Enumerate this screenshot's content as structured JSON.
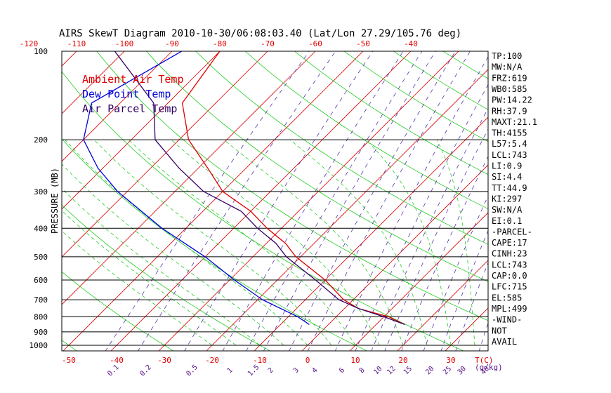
{
  "chart_data": {
    "type": "line",
    "title": "AIRS SkewT Diagram 2010-10-30/06:08:03.40 (Lat/Lon 27.29/105.76 deg)",
    "ylabel": "PRESSURE (MB)",
    "pressure_ticks": [
      "100",
      "200",
      "300",
      "400",
      "500",
      "600",
      "700",
      "800",
      "900",
      "1000"
    ],
    "pressure_levels": [
      100,
      200,
      300,
      400,
      500,
      600,
      700,
      800,
      900,
      1000
    ],
    "top_temp_ticks": [
      "-120",
      "-110",
      "-100",
      "-90",
      "-80",
      "-70",
      "-60",
      "-50",
      "-40"
    ],
    "top_temp_values": [
      -120,
      -110,
      -100,
      -90,
      -80,
      -70,
      -60,
      -50,
      -40
    ],
    "bottom_temp_ticks": [
      "-50",
      "-40",
      "-30",
      "-20",
      "-10",
      "0",
      "10",
      "20",
      "30"
    ],
    "bottom_temp_values": [
      -50,
      -40,
      -30,
      -20,
      -10,
      0,
      10,
      20,
      30
    ],
    "bottom_temp_unit": "T(C)",
    "mixing_ratio_ticks": [
      "0.1",
      "0.2",
      "0.5",
      "1",
      "1.5",
      "2",
      "3",
      "4",
      "6",
      "8",
      "10",
      "12",
      "15",
      "20",
      "25",
      "30",
      "40"
    ],
    "mixing_ratio_unit": "(g/kg)",
    "legend": [
      {
        "label": "Ambient Air Temp",
        "color": "#dd0000"
      },
      {
        "label": "Dew Point Temp",
        "color": "#0000dd"
      },
      {
        "label": "Air Parcel Temp",
        "color": "#330066"
      }
    ],
    "series": [
      {
        "name": "Ambient Air Temp",
        "points": [
          [
            100,
            -80
          ],
          [
            150,
            -77
          ],
          [
            200,
            -68
          ],
          [
            250,
            -58
          ],
          [
            300,
            -50
          ],
          [
            350,
            -40
          ],
          [
            400,
            -33
          ],
          [
            450,
            -26
          ],
          [
            500,
            -21
          ],
          [
            600,
            -10
          ],
          [
            700,
            -2
          ],
          [
            750,
            3
          ],
          [
            800,
            11
          ],
          [
            850,
            16
          ]
        ]
      },
      {
        "name": "Dew Point Temp",
        "points": [
          [
            100,
            -88
          ],
          [
            150,
            -96
          ],
          [
            200,
            -90
          ],
          [
            250,
            -81
          ],
          [
            300,
            -72
          ],
          [
            400,
            -55
          ],
          [
            500,
            -40
          ],
          [
            600,
            -29
          ],
          [
            700,
            -19
          ],
          [
            800,
            -8
          ],
          [
            850,
            -4
          ]
        ]
      },
      {
        "name": "Air Parcel Temp",
        "points": [
          [
            100,
            -102
          ],
          [
            150,
            -83
          ],
          [
            200,
            -75
          ],
          [
            250,
            -64
          ],
          [
            300,
            -54
          ],
          [
            350,
            -42
          ],
          [
            400,
            -35
          ],
          [
            450,
            -28
          ],
          [
            500,
            -23
          ],
          [
            600,
            -12
          ],
          [
            700,
            -3
          ],
          [
            750,
            3
          ],
          [
            800,
            10
          ],
          [
            850,
            16
          ]
        ]
      }
    ],
    "isotherms_c": [
      -150,
      -140,
      -130,
      -120,
      -110,
      -100,
      -90,
      -80,
      -70,
      -60,
      -50,
      -40,
      -30,
      -20,
      -10,
      0,
      10,
      20,
      30,
      40
    ],
    "dry_adiabats_theta_k": [
      -130,
      -110,
      -90,
      -70,
      -50,
      -30,
      -10,
      10,
      30,
      50,
      70,
      90,
      110,
      130,
      150,
      170,
      190,
      210
    ],
    "moist_adiabats_c": [
      -20,
      -15,
      -10,
      -5,
      0,
      5,
      10,
      15,
      20,
      25,
      30,
      35,
      40
    ],
    "mixing_ratio_lines_gkg": [
      0.1,
      0.2,
      0.5,
      1,
      1.5,
      2,
      3,
      4,
      6,
      8,
      10,
      12,
      15,
      20,
      25,
      30,
      40
    ],
    "ylim": [
      1000,
      100
    ]
  },
  "indices": [
    "TP:100",
    "MW:N/A",
    "FRZ:619",
    "WB0:585",
    "PW:14.22",
    "RH:37.9",
    "MAXT:21.1",
    "TH:4155",
    "L57:5.4",
    "LCL:743",
    "LI:0.9",
    "SI:4.4",
    "TT:44.9",
    "KI:297",
    "SW:N/A",
    "EI:0.1",
    "-PARCEL-",
    "CAPE:17",
    "CINH:23",
    "LCL:743",
    "CAP:0.0",
    "LFC:715",
    "EL:585",
    "MPL:499",
    "-WIND-",
    "NOT",
    "AVAIL"
  ],
  "colors": {
    "axes": "#000000",
    "isotherm": "#dd0000",
    "dry_adiabat": "#22cc22",
    "moist_adiabat": "#22cc22",
    "mixing_ratio": "#5533aa",
    "ambient": "#dd0000",
    "dewpoint": "#0000dd",
    "parcel": "#330066",
    "top_ticks": "#dd0000",
    "bottom_ticks": "#dd0000",
    "mixing_ticks": "#551188"
  }
}
